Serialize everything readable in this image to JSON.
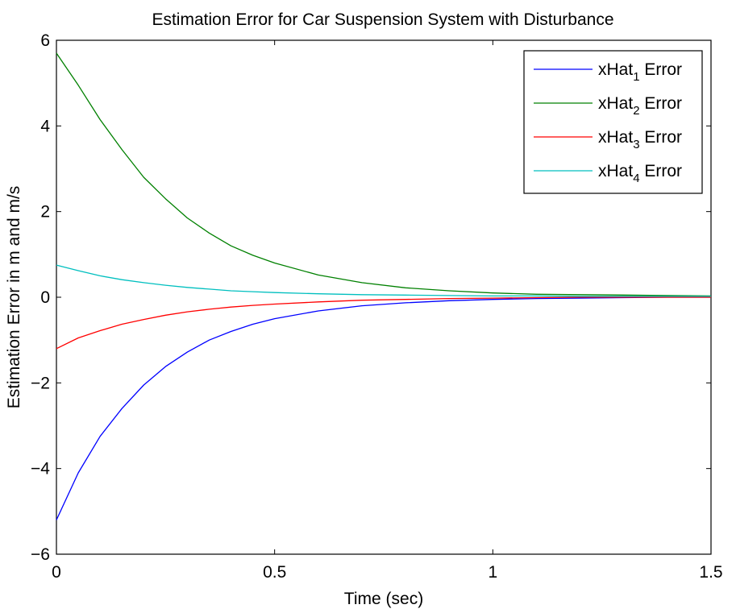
{
  "chart_data": {
    "type": "line",
    "title": "Estimation Error for Car Suspension System with Disturbance",
    "xlabel": "Time (sec)",
    "ylabel": "Estimation Error in m and m/s",
    "xlim": [
      0,
      1.5
    ],
    "ylim": [
      -6,
      6
    ],
    "xticks": [
      0,
      0.5,
      1,
      1.5
    ],
    "xtick_labels": [
      "0",
      "0.5",
      "1",
      "1.5"
    ],
    "yticks": [
      -6,
      -4,
      -2,
      0,
      2,
      4,
      6
    ],
    "ytick_labels": [
      "−6",
      "−4",
      "−2",
      "0",
      "2",
      "4",
      "6"
    ],
    "grid": false,
    "legend_position": "top-right",
    "x": [
      0,
      0.05,
      0.1,
      0.15,
      0.2,
      0.25,
      0.3,
      0.35,
      0.4,
      0.45,
      0.5,
      0.6,
      0.7,
      0.8,
      0.9,
      1.0,
      1.1,
      1.2,
      1.3,
      1.4,
      1.5
    ],
    "series": [
      {
        "name": "xHat1 Error",
        "label_base": "xHat",
        "label_sub": "1",
        "label_suffix": " Error",
        "color": "#0000ff",
        "values": [
          -5.2,
          -4.1,
          -3.25,
          -2.6,
          -2.05,
          -1.62,
          -1.28,
          -1.0,
          -0.8,
          -0.63,
          -0.5,
          -0.32,
          -0.2,
          -0.13,
          -0.08,
          -0.05,
          -0.03,
          -0.02,
          -0.01,
          0.0,
          0.0
        ]
      },
      {
        "name": "xHat2 Error",
        "label_base": "xHat",
        "label_sub": "2",
        "label_suffix": " Error",
        "color": "#008000",
        "values": [
          5.7,
          4.95,
          4.15,
          3.45,
          2.8,
          2.3,
          1.85,
          1.5,
          1.2,
          0.98,
          0.8,
          0.52,
          0.34,
          0.22,
          0.15,
          0.1,
          0.07,
          0.06,
          0.05,
          0.04,
          0.03
        ]
      },
      {
        "name": "xHat3 Error",
        "label_base": "xHat",
        "label_sub": "3",
        "label_suffix": " Error",
        "color": "#ff0000",
        "values": [
          -1.2,
          -0.95,
          -0.78,
          -0.63,
          -0.52,
          -0.42,
          -0.34,
          -0.28,
          -0.23,
          -0.19,
          -0.16,
          -0.11,
          -0.07,
          -0.05,
          -0.03,
          -0.02,
          -0.01,
          0.0,
          0.0,
          0.0,
          0.0
        ]
      },
      {
        "name": "xHat4 Error",
        "label_base": "xHat",
        "label_sub": "4",
        "label_suffix": " Error",
        "color": "#00bfbf",
        "values": [
          0.75,
          0.62,
          0.5,
          0.41,
          0.34,
          0.28,
          0.23,
          0.19,
          0.15,
          0.13,
          0.11,
          0.08,
          0.06,
          0.05,
          0.04,
          0.03,
          0.03,
          0.02,
          0.02,
          0.02,
          0.02
        ]
      }
    ]
  }
}
